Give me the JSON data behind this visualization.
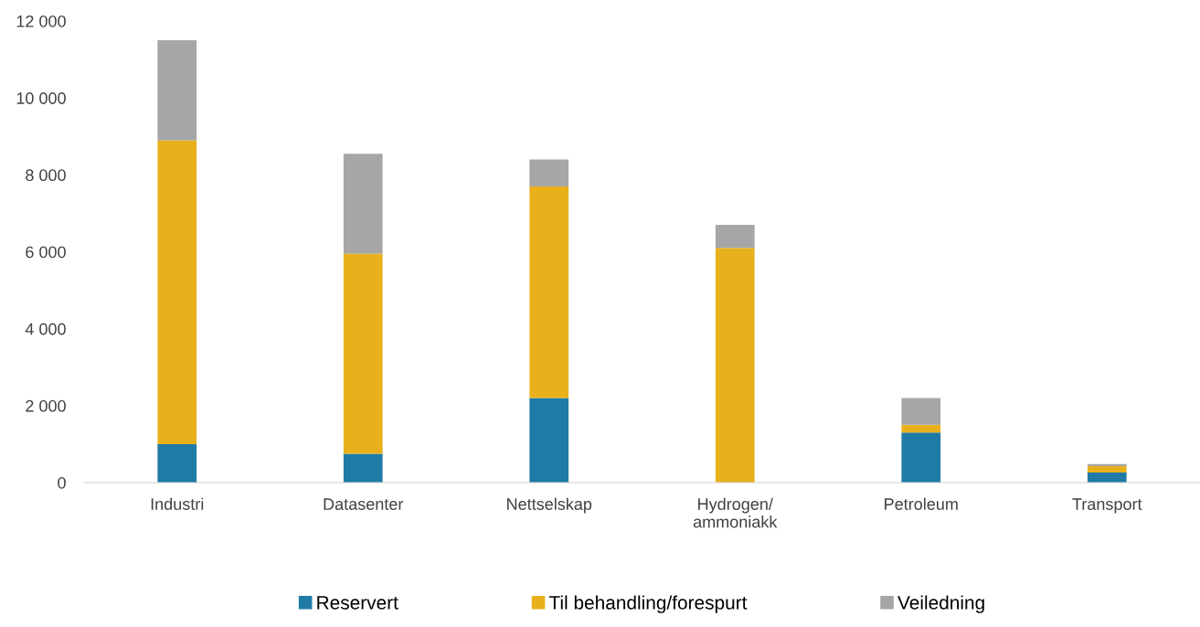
{
  "chart_data": {
    "type": "bar",
    "stacked": true,
    "categories": [
      "Industri",
      "Datasenter",
      "Nettselskap",
      "Hydrogen/\nammoniakk",
      "Petroleum",
      "Transport"
    ],
    "series": [
      {
        "name": "Reservert",
        "color": "#1f7ba5",
        "values": [
          1000,
          750,
          2200,
          0,
          1300,
          260
        ]
      },
      {
        "name": "Til behandling/forespurt",
        "color": "#e8b11c",
        "values": [
          7900,
          5200,
          5500,
          6100,
          200,
          170
        ]
      },
      {
        "name": "Veiledning",
        "color": "#a6a6a6",
        "values": [
          2600,
          2600,
          700,
          600,
          700,
          50
        ]
      }
    ],
    "ylim": [
      0,
      12000
    ],
    "yticks": [
      0,
      {
        "value": 2000,
        "label": "2 000"
      },
      {
        "value": 4000,
        "label": "4 000"
      },
      {
        "value": 6000,
        "label": "6 000"
      },
      {
        "value": 8000,
        "label": "8 000"
      },
      {
        "value": 10000,
        "label": "10 000"
      },
      {
        "value": 12000,
        "label": "12 000"
      }
    ],
    "grid": false,
    "legend": "bottom"
  }
}
